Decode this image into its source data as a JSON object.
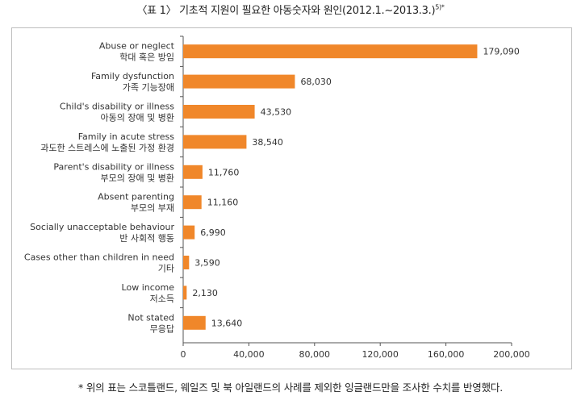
{
  "title": {
    "main": "〈표 1〉 기초적 지원이 필요한 아동숫자와 원인(2012.1.~2013.3.)",
    "note_mark": "5)*"
  },
  "footnote": "* 위의 표는 스코틀랜드, 웨일즈 및 북 아일랜드의 사례를 제외한 잉글랜드만을 조사한 수치를 반영했다.",
  "colors": {
    "bar": "#f0872a",
    "axis": "#555555",
    "frame": "#bdbdbd"
  },
  "chart_data": {
    "type": "bar",
    "orientation": "horizontal",
    "categories": [
      {
        "en": "Abuse or neglect",
        "ko": "학대 혹은 방임"
      },
      {
        "en": "Family dysfunction",
        "ko": "가족 기능장애"
      },
      {
        "en": "Child's disability or illness",
        "ko": "아동의 장애 및 병환"
      },
      {
        "en": "Family in acute stress",
        "ko": "과도한 스트레스에 노출된 가정 환경"
      },
      {
        "en": "Parent's disability or illness",
        "ko": "부모의 장애 및 병환"
      },
      {
        "en": "Absent parenting",
        "ko": "부모의 부재"
      },
      {
        "en": "Socially unacceptable behaviour",
        "ko": "반 사회적 행동"
      },
      {
        "en": "Cases other than children in need",
        "ko": "기타"
      },
      {
        "en": "Low income",
        "ko": "저소득"
      },
      {
        "en": "Not stated",
        "ko": "무응답"
      }
    ],
    "values": [
      179090,
      68030,
      43530,
      38540,
      11760,
      11160,
      6990,
      3590,
      2130,
      13640
    ],
    "value_labels": [
      "179,090",
      "68,030",
      "43,530",
      "38,540",
      "11,760",
      "11,160",
      "6,990",
      "3,590",
      "2,130",
      "13,640"
    ],
    "xlim": [
      0,
      200000
    ],
    "xticks": [
      0,
      40000,
      80000,
      120000,
      160000,
      200000
    ],
    "xtick_labels": [
      "0",
      "40,000",
      "80,000",
      "120,000",
      "160,000",
      "200,000"
    ],
    "grid": false,
    "legend": "none"
  }
}
